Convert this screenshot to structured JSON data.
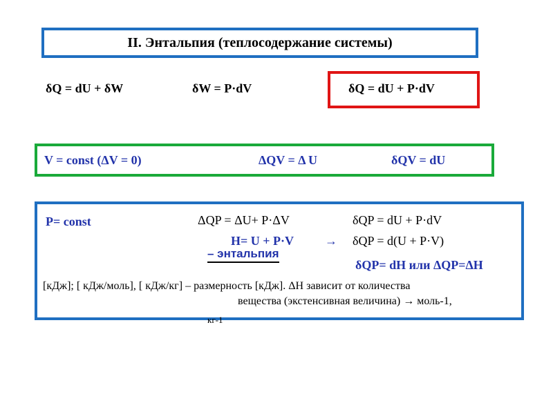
{
  "title": {
    "prefix": "II. ",
    "text": "Энтальпия (теплосодержание системы)"
  },
  "row1": {
    "eq1": "δQ = dU + δW",
    "eq2": "δW = P·dV",
    "eq3": "δQ = dU + P·dV"
  },
  "row2": {
    "cond": "V = const (ΔV = 0)",
    "eq1": "ΔQV = Δ U",
    "eq2": "δQV = dU"
  },
  "box3": {
    "cond": "P= const",
    "eq1": "ΔQP = ΔU+ P·ΔV",
    "eq2": "δQP = dU + P·dV",
    "h_def": "H= U + P·V",
    "arrow": "→",
    "eq3": "δQP = d(U + P·V)",
    "enthalpy_label": "– энтальпия",
    "eq4": "δQP= dH или ΔQP=ΔH",
    "units_line1": "[кДж]; [ кДж/моль], [ кДж/кг] – размерность [кДж]. ΔH зависит от количества",
    "units_line2": "вещества (экстенсивная величина) → моль-1,",
    "units_line3": "кг-1"
  }
}
